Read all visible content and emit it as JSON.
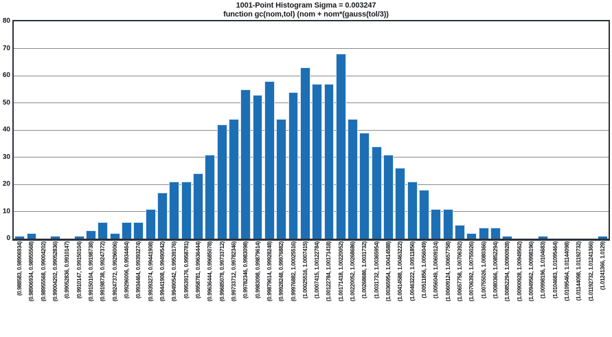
{
  "title": "1001-Point Histogram Sigma = 0.003247",
  "subtitle": "function gc(nom,tol) (nom + nom*(gauss(tol/3))",
  "colors": {
    "bar_fill": "#1d6fb5",
    "bar_edge": "#d9e6f2",
    "gridline": "#8a8a8a",
    "frame": "#2d313a",
    "text": "#17181c",
    "background": "#ffffff"
  },
  "chart_data": {
    "type": "bar",
    "title": "1001-Point Histogram Sigma = 0.003247",
    "subtitle": "function gc(nom,tol) (nom + nom*(gauss(tol/3))",
    "xlabel": "",
    "ylabel": "",
    "ylim": [
      0,
      80
    ],
    "yticks": [
      0,
      10,
      20,
      30,
      40,
      50,
      60,
      70,
      80
    ],
    "grid": "horizontal",
    "legend": "none",
    "total_points": 1001,
    "categories": [
      "(0.988583, 0.98906934)",
      "(0.98906934, 0.98955568)",
      "(0.98955568, 0.99004202)",
      "(0.99004202, 0.99052836)",
      "(0.99052836, 0.9910147)",
      "(0.9910147, 0.99150104)",
      "(0.99150104, 0.99198738)",
      "(0.99198738, 0.99247372)",
      "(0.99247372, 0.99296006)",
      "(0.99296006, 0.9934464)",
      "(0.9934464, 0.99393274)",
      "(0.99393274, 0.99441908)",
      "(0.99441908, 0.99490542)",
      "(0.99490542, 0.99539176)",
      "(0.99539176, 0.9958781)",
      "(0.9958781, 0.99636444)",
      "(0.99636444, 0.99685078)",
      "(0.99685078, 0.99733712)",
      "(0.99733712, 0.99782346)",
      "(0.99782346, 0.9983098)",
      "(0.9983098, 0.99879614)",
      "(0.99879614, 0.99928248)",
      "(0.99928248, 0.99976882)",
      "(0.99976882, 1.00025516)",
      "(1.00025516, 1.0007415)",
      "(1.0007415, 1.00122784)",
      "(1.00122784, 1.00171418)",
      "(1.00171418, 1.00220052)",
      "(1.00220052, 1.00268686)",
      "(1.00268686, 1.0031732)",
      "(1.0031732, 1.00365954)",
      "(1.00365954, 1.00414588)",
      "(1.00414588, 1.00463222)",
      "(1.00463222, 1.00511856)",
      "(1.00511856, 1.0056049)",
      "(1.0056049, 1.00609124)",
      "(1.00609124, 1.00657758)",
      "(1.00657758, 1.00706392)",
      "(1.00706392, 1.00755026)",
      "(1.00755026, 1.0080366)",
      "(1.0080366, 1.00852294)",
      "(1.00852294, 1.00900928)",
      "(1.00900928, 1.00949562)",
      "(1.00949562, 1.00998196)",
      "(1.00998196, 1.0104683)",
      "(1.0104683, 1.01095464)",
      "(1.01095464, 1.01144098)",
      "(1.01144098, 1.01192732)",
      "(1.01192732, 1.01241366)",
      "(1.01241366, 1.0129)"
    ],
    "values": [
      1,
      2,
      0,
      1,
      0,
      1,
      3,
      6,
      2,
      6,
      6,
      11,
      17,
      21,
      21,
      24,
      31,
      42,
      44,
      55,
      53,
      58,
      44,
      54,
      63,
      57,
      57,
      68,
      44,
      39,
      34,
      31,
      26,
      21,
      18,
      11,
      11,
      5,
      2,
      4,
      4,
      1,
      0,
      0,
      1,
      0,
      0,
      0,
      0,
      1
    ]
  }
}
